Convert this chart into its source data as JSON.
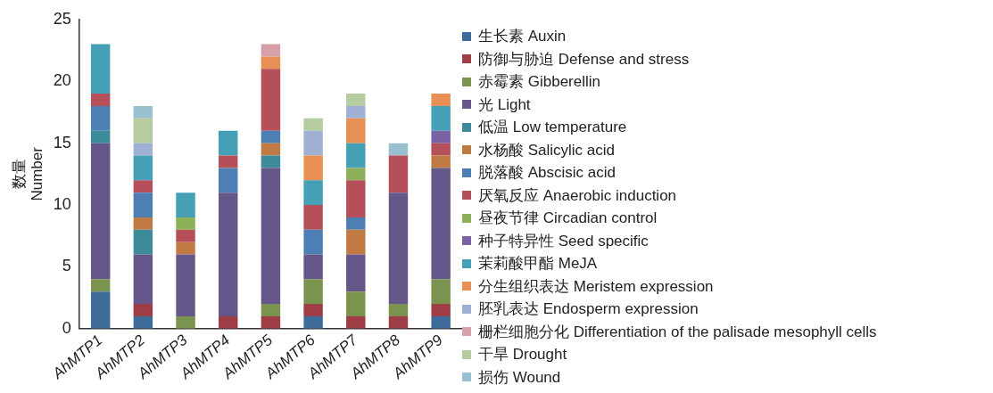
{
  "chart_data": {
    "type": "bar",
    "stacked": true,
    "ylabel": "数量\nNumber",
    "categories": [
      "AhMTP1",
      "AhMTP2",
      "AhMTP3",
      "AhMTP4",
      "AhMTP5",
      "AhMTP6",
      "AhMTP7",
      "AhMTP8",
      "AhMTP9"
    ],
    "ylim": [
      0,
      25
    ],
    "yticks": [
      0,
      5,
      10,
      15,
      20,
      25
    ],
    "grid": false,
    "legend": "right",
    "series": [
      {
        "name": "生长素 Auxin",
        "color": "#3e6b9a",
        "values": [
          3,
          1,
          0,
          0,
          0,
          1,
          0,
          0,
          1
        ]
      },
      {
        "name": "防御与胁迫 Defense and stress",
        "color": "#9e3d46",
        "values": [
          0,
          1,
          0,
          1,
          1,
          1,
          1,
          1,
          1
        ]
      },
      {
        "name": "赤霉素 Gibberellin",
        "color": "#7a9450",
        "values": [
          1,
          0,
          1,
          0,
          1,
          2,
          2,
          1,
          2
        ]
      },
      {
        "name": "光 Light",
        "color": "#66578a",
        "values": [
          11,
          4,
          5,
          10,
          11,
          2,
          3,
          9,
          9
        ]
      },
      {
        "name": "低温 Low temperature",
        "color": "#3d8a9a",
        "values": [
          1,
          2,
          0,
          0,
          1,
          0,
          0,
          0,
          0
        ]
      },
      {
        "name": "水杨酸 Salicylic acid",
        "color": "#c27a45",
        "values": [
          0,
          1,
          1,
          0,
          1,
          0,
          2,
          0,
          1
        ]
      },
      {
        "name": "脱落酸 Abscisic acid",
        "color": "#4d7fb5",
        "values": [
          2,
          2,
          0,
          2,
          1,
          2,
          1,
          0,
          0
        ]
      },
      {
        "name": "厌氧反应 Anaerobic induction",
        "color": "#b5505a",
        "values": [
          1,
          1,
          1,
          1,
          5,
          2,
          3,
          3,
          1
        ]
      },
      {
        "name": "昼夜节律 Circadian control",
        "color": "#8fb05a",
        "values": [
          0,
          0,
          1,
          0,
          0,
          0,
          1,
          0,
          0
        ]
      },
      {
        "name": "种子特异性 Seed specific",
        "color": "#7a62a5",
        "values": [
          0,
          0,
          0,
          0,
          0,
          0,
          0,
          0,
          1
        ]
      },
      {
        "name": "茉莉酸甲酯 MeJA",
        "color": "#45a0b5",
        "values": [
          4,
          2,
          2,
          2,
          0,
          2,
          2,
          0,
          2
        ]
      },
      {
        "name": "分生组织表达 Meristem expression",
        "color": "#e88f55",
        "values": [
          0,
          0,
          0,
          0,
          1,
          2,
          2,
          0,
          1
        ]
      },
      {
        "name": "胚乳表达 Endosperm expression",
        "color": "#a0b0d5",
        "values": [
          0,
          1,
          0,
          0,
          0,
          2,
          1,
          0,
          0
        ]
      },
      {
        "name": "栅栏细胞分化 Differentiation of the palisade mesophyll cells",
        "color": "#d5a0a8",
        "values": [
          0,
          0,
          0,
          0,
          1,
          0,
          0,
          0,
          0
        ]
      },
      {
        "name": "干旱 Drought",
        "color": "#b5cca0",
        "values": [
          0,
          2,
          0,
          0,
          0,
          1,
          1,
          0,
          0
        ]
      },
      {
        "name": "损伤 Wound",
        "color": "#98c0d0",
        "values": [
          0,
          1,
          0,
          0,
          0,
          0,
          0,
          1,
          0
        ]
      }
    ]
  }
}
